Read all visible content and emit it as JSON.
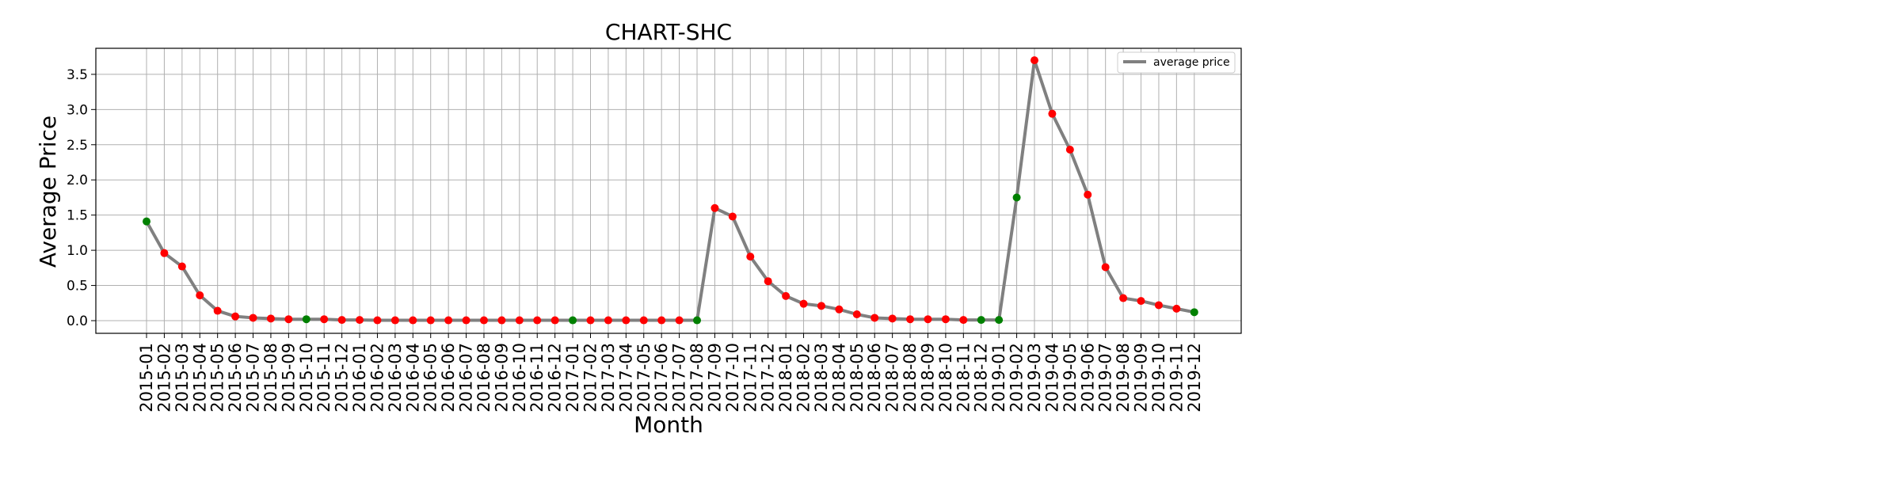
{
  "chart_data": {
    "type": "line",
    "title": "CHART-SHC",
    "xlabel": "Month",
    "ylabel": "Average Price",
    "ylim": [
      -0.18,
      3.87
    ],
    "yticks": [
      "0.0",
      "0.5",
      "1.0",
      "1.5",
      "2.0",
      "2.5",
      "3.0",
      "3.5"
    ],
    "grid": true,
    "legend_position": "top-right",
    "categories": [
      "2015-01",
      "2015-02",
      "2015-03",
      "2015-04",
      "2015-05",
      "2015-06",
      "2015-07",
      "2015-08",
      "2015-09",
      "2015-10",
      "2015-11",
      "2015-12",
      "2016-01",
      "2016-02",
      "2016-03",
      "2016-04",
      "2016-05",
      "2016-06",
      "2016-07",
      "2016-08",
      "2016-09",
      "2016-10",
      "2016-11",
      "2016-12",
      "2017-01",
      "2017-02",
      "2017-03",
      "2017-04",
      "2017-05",
      "2017-06",
      "2017-07",
      "2017-08",
      "2017-09",
      "2017-10",
      "2017-11",
      "2017-12",
      "2018-01",
      "2018-02",
      "2018-03",
      "2018-04",
      "2018-05",
      "2018-06",
      "2018-07",
      "2018-08",
      "2018-09",
      "2018-10",
      "2018-11",
      "2018-12",
      "2019-01",
      "2019-02",
      "2019-03",
      "2019-04",
      "2019-05",
      "2019-06",
      "2019-07",
      "2019-08",
      "2019-09",
      "2019-10",
      "2019-11",
      "2019-12"
    ],
    "series": [
      {
        "name": "average price",
        "color": "#808080",
        "values": [
          1.41,
          0.96,
          0.77,
          0.36,
          0.14,
          0.06,
          0.04,
          0.03,
          0.02,
          0.02,
          0.02,
          0.01,
          0.01,
          0.005,
          0.005,
          0.005,
          0.005,
          0.005,
          0.005,
          0.005,
          0.005,
          0.005,
          0.005,
          0.005,
          0.005,
          0.005,
          0.005,
          0.005,
          0.005,
          0.005,
          0.005,
          0.005,
          1.6,
          1.48,
          0.91,
          0.56,
          0.35,
          0.24,
          0.21,
          0.16,
          0.09,
          0.04,
          0.03,
          0.02,
          0.02,
          0.02,
          0.01,
          0.01,
          0.01,
          1.75,
          3.7,
          2.94,
          2.43,
          1.79,
          0.76,
          0.32,
          0.28,
          0.22,
          0.17,
          0.12
        ]
      }
    ],
    "marker_colors": {
      "up": "#008000",
      "down": "#ff0000"
    },
    "marker_direction": [
      "up",
      "down",
      "down",
      "down",
      "down",
      "down",
      "down",
      "down",
      "down",
      "up",
      "down",
      "down",
      "down",
      "down",
      "down",
      "down",
      "down",
      "down",
      "down",
      "down",
      "down",
      "down",
      "down",
      "down",
      "up",
      "down",
      "down",
      "down",
      "down",
      "down",
      "down",
      "up",
      "down",
      "down",
      "down",
      "down",
      "down",
      "down",
      "down",
      "down",
      "down",
      "down",
      "down",
      "down",
      "down",
      "down",
      "down",
      "up",
      "up",
      "up",
      "down",
      "down",
      "down",
      "down",
      "down",
      "down",
      "down",
      "down",
      "down",
      "up"
    ]
  }
}
